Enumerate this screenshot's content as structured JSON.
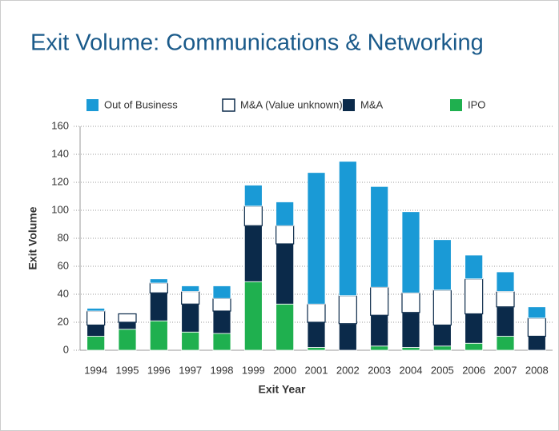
{
  "chart_data": {
    "type": "stacked_bar",
    "title": "Exit Volume: Communications & Networking",
    "xlabel": "Exit Year",
    "ylabel": "Exit Volume",
    "categories": [
      "1994",
      "1995",
      "1996",
      "1997",
      "1998",
      "1999",
      "2000",
      "2001",
      "2002",
      "2003",
      "2004",
      "2005",
      "2006",
      "2007",
      "2008"
    ],
    "series": [
      {
        "name": "Out of Business",
        "color": "#1a9ad6",
        "values": [
          2,
          0,
          3,
          4,
          9,
          15,
          17,
          94,
          96,
          72,
          58,
          36,
          17,
          14,
          8
        ]
      },
      {
        "name": "M&A (Value unknown)",
        "color": "#ffffff",
        "edgecolor": "#0b2a4a",
        "values": [
          10,
          6,
          7,
          9,
          9,
          14,
          13,
          13,
          20,
          20,
          14,
          25,
          25,
          11,
          13
        ]
      },
      {
        "name": "M&A",
        "color": "#0b2a4a",
        "values": [
          8,
          5,
          20,
          20,
          16,
          40,
          43,
          18,
          19,
          22,
          25,
          15,
          21,
          21,
          10
        ]
      },
      {
        "name": "IPO",
        "color": "#1fb04f",
        "values": [
          10,
          15,
          21,
          13,
          12,
          49,
          33,
          2,
          0,
          3,
          2,
          3,
          5,
          10,
          0
        ]
      }
    ],
    "ylim": [
      0,
      160
    ],
    "yticks": [
      0,
      20,
      40,
      60,
      80,
      100,
      120,
      140,
      160
    ],
    "grid": true,
    "legend": "top"
  }
}
